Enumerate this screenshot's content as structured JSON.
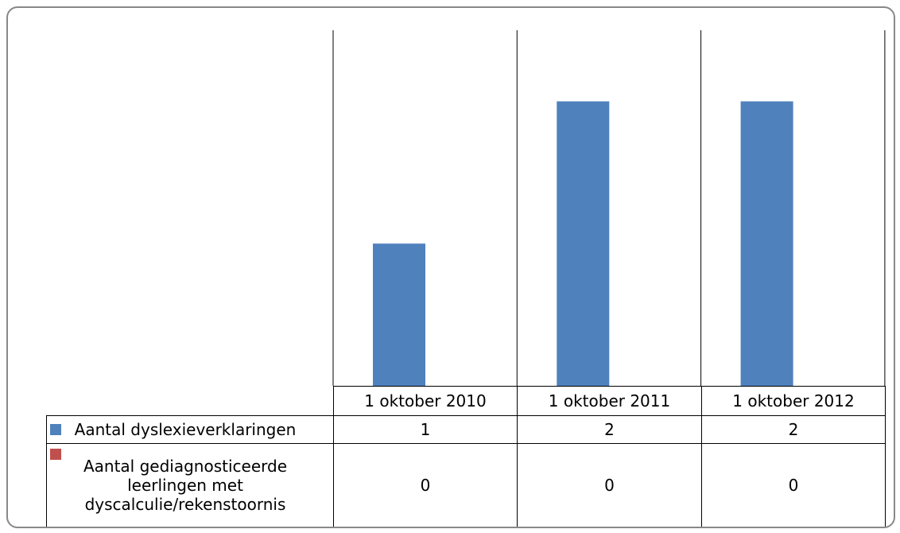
{
  "chart_data": {
    "type": "bar",
    "categories": [
      "1 oktober 2010",
      "1 oktober 2011",
      "1 oktober 2012"
    ],
    "series": [
      {
        "name": "Aantal dyslexieverklaringen",
        "color": "#4f81bd",
        "values": [
          1,
          2,
          2
        ]
      },
      {
        "name": "Aantal gediagnosticeerde leerlingen met dyscalculie/rekenstoornis",
        "color": "#c0504d",
        "values": [
          0,
          0,
          0
        ]
      }
    ],
    "ylim": [
      0,
      2.5
    ]
  }
}
